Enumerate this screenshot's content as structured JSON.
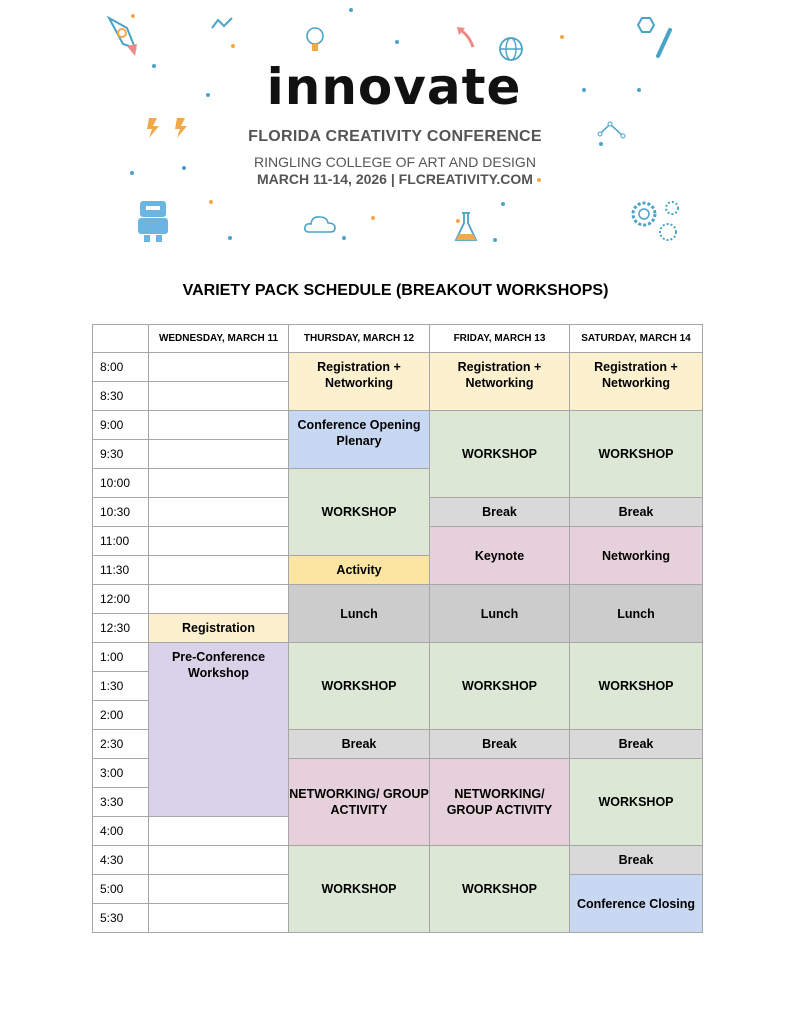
{
  "header": {
    "logo_text": "innovate",
    "conference": "FLORIDA CREATIVITY CONFERENCE",
    "venue": "RINGLING COLLEGE OF ART AND DESIGN",
    "dates_site": "MARCH 11-14, 2026 | FLCREATIVITY.COM",
    "icons": [
      "rocket-icon",
      "line-graph-icon",
      "lightbulb-icon",
      "arrow-icon",
      "globe-icon",
      "nut-wrench-icon",
      "lightning-icon",
      "network-icon",
      "robot-icon",
      "cloud-icon",
      "flask-icon",
      "gears-icon"
    ],
    "colors": {
      "blue": "#4aa3c8",
      "orange": "#f3a94a",
      "pink": "#ee8a86"
    }
  },
  "title": "VARIETY PACK SCHEDULE (BREAKOUT WORKSHOPS)",
  "schedule": {
    "days": [
      "WEDNESDAY, MARCH 11",
      "THURSDAY, MARCH 12",
      "FRIDAY, MARCH 13",
      "SATURDAY, MARCH 14"
    ],
    "times": [
      "8:00",
      "8:30",
      "9:00",
      "9:30",
      "10:00",
      "10:30",
      "11:00",
      "11:30",
      "12:00",
      "12:30",
      "1:00",
      "1:30",
      "2:00",
      "2:30",
      "3:00",
      "3:30",
      "4:00",
      "4:30",
      "5:00",
      "5:30"
    ],
    "colors": {
      "registration": "#fcf0cf",
      "workshop": "#dce8d5",
      "plenary": "#c9d8f2",
      "break": "#d9d9d9",
      "lunch": "#cccccc",
      "networking": "#e6d1db",
      "preconf": "#d9d2e9",
      "activity": "#fce5a0",
      "empty": "#ffffff"
    },
    "columns": [
      [
        {
          "label": "",
          "span": 1,
          "type": "empty"
        },
        {
          "label": "",
          "span": 1,
          "type": "empty"
        },
        {
          "label": "",
          "span": 1,
          "type": "empty"
        },
        {
          "label": "",
          "span": 1,
          "type": "empty"
        },
        {
          "label": "",
          "span": 1,
          "type": "empty"
        },
        {
          "label": "",
          "span": 1,
          "type": "empty"
        },
        {
          "label": "",
          "span": 1,
          "type": "empty"
        },
        {
          "label": "",
          "span": 1,
          "type": "empty"
        },
        {
          "label": "",
          "span": 1,
          "type": "empty"
        },
        {
          "label": "Registration",
          "span": 1,
          "type": "registration"
        },
        {
          "label": "Pre-Conference Workshop",
          "span": 6,
          "type": "preconf",
          "top": true
        },
        {
          "label": "",
          "span": 1,
          "type": "empty"
        },
        {
          "label": "",
          "span": 1,
          "type": "empty"
        },
        {
          "label": "",
          "span": 1,
          "type": "empty"
        },
        {
          "label": "",
          "span": 1,
          "type": "empty"
        }
      ],
      [
        {
          "label": "Registration + Networking",
          "span": 2,
          "type": "registration",
          "top": true
        },
        {
          "label": "Conference Opening Plenary",
          "span": 2,
          "type": "plenary",
          "top": true
        },
        {
          "label": "WORKSHOP",
          "span": 3,
          "type": "workshop"
        },
        {
          "label": "Activity",
          "span": 1,
          "type": "activity"
        },
        {
          "label": "Lunch",
          "span": 2,
          "type": "lunch"
        },
        {
          "label": "WORKSHOP",
          "span": 3,
          "type": "workshop"
        },
        {
          "label": "Break",
          "span": 1,
          "type": "break"
        },
        {
          "label": "NETWORKING/ GROUP ACTIVITY",
          "span": 3,
          "type": "networking"
        },
        {
          "label": "WORKSHOP",
          "span": 3,
          "type": "workshop"
        }
      ],
      [
        {
          "label": "Registration + Networking",
          "span": 2,
          "type": "registration",
          "top": true
        },
        {
          "label": "WORKSHOP",
          "span": 3,
          "type": "workshop"
        },
        {
          "label": "Break",
          "span": 1,
          "type": "break"
        },
        {
          "label": "Keynote",
          "span": 2,
          "type": "networking"
        },
        {
          "label": "Lunch",
          "span": 2,
          "type": "lunch"
        },
        {
          "label": "WORKSHOP",
          "span": 3,
          "type": "workshop"
        },
        {
          "label": "Break",
          "span": 1,
          "type": "break"
        },
        {
          "label": "NETWORKING/ GROUP ACTIVITY",
          "span": 3,
          "type": "networking"
        },
        {
          "label": "WORKSHOP",
          "span": 3,
          "type": "workshop"
        }
      ],
      [
        {
          "label": "Registration + Networking",
          "span": 2,
          "type": "registration",
          "top": true
        },
        {
          "label": "WORKSHOP",
          "span": 3,
          "type": "workshop"
        },
        {
          "label": "Break",
          "span": 1,
          "type": "break"
        },
        {
          "label": "Networking",
          "span": 2,
          "type": "networking"
        },
        {
          "label": "Lunch",
          "span": 2,
          "type": "lunch"
        },
        {
          "label": "WORKSHOP",
          "span": 3,
          "type": "workshop"
        },
        {
          "label": "Break",
          "span": 1,
          "type": "break"
        },
        {
          "label": "WORKSHOP",
          "span": 3,
          "type": "workshop"
        },
        {
          "label": "Break",
          "span": 1,
          "type": "break"
        },
        {
          "label": "Conference Closing",
          "span": 2,
          "type": "plenary"
        }
      ]
    ]
  }
}
